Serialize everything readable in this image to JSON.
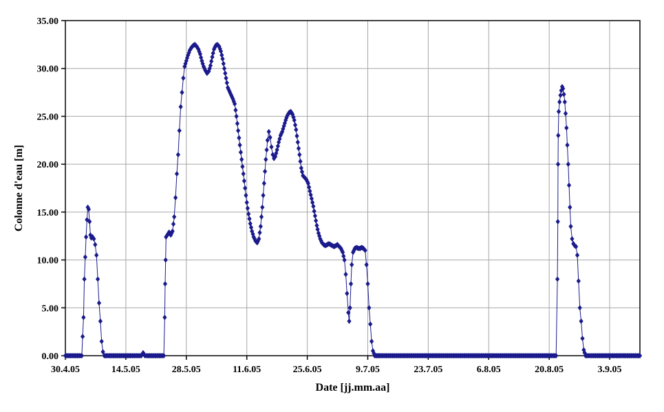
{
  "chart_data": {
    "type": "scatter",
    "title": "",
    "xlabel": "Date [jj.mm.aa]",
    "ylabel": "Colonne d'eau [m]",
    "x_unit": "days since 30.4.05",
    "xlim": [
      0,
      133
    ],
    "ylim": [
      0,
      35
    ],
    "grid": true,
    "legend": "none",
    "marker": "diamond",
    "marker_color": "#1a1a8c",
    "grid_color": "#a6a6a6",
    "axis_color": "#000000",
    "x_ticks": [
      {
        "day": 0,
        "label": "30.4.05"
      },
      {
        "day": 14,
        "label": "14.5.05"
      },
      {
        "day": 28,
        "label": "28.5.05"
      },
      {
        "day": 42,
        "label": "11.6.05"
      },
      {
        "day": 56,
        "label": "25.6.05"
      },
      {
        "day": 70,
        "label": "9.7.05"
      },
      {
        "day": 84,
        "label": "23.7.05"
      },
      {
        "day": 98,
        "label": "6.8.05"
      },
      {
        "day": 112,
        "label": "20.8.05"
      },
      {
        "day": 126,
        "label": "3.9.05"
      }
    ],
    "y_ticks": [
      {
        "value": 0,
        "label": "0.00"
      },
      {
        "value": 5,
        "label": "5.00"
      },
      {
        "value": 10,
        "label": "10.00"
      },
      {
        "value": 15,
        "label": "15.00"
      },
      {
        "value": 20,
        "label": "20.00"
      },
      {
        "value": 25,
        "label": "25.00"
      },
      {
        "value": 30,
        "label": "30.00"
      },
      {
        "value": 35,
        "label": "35.00"
      }
    ],
    "points": [
      [
        0,
        0
      ],
      [
        1,
        0
      ],
      [
        2,
        0
      ],
      [
        3,
        0
      ],
      [
        3.8,
        0
      ],
      [
        4.2,
        4.0
      ],
      [
        4.4,
        8.0
      ],
      [
        4.6,
        10.3
      ],
      [
        4.8,
        12.4
      ],
      [
        5.0,
        14.2
      ],
      [
        5.2,
        15.5
      ],
      [
        5.4,
        15.3
      ],
      [
        5.6,
        14.0
      ],
      [
        5.8,
        12.6
      ],
      [
        6.0,
        12.3
      ],
      [
        6.3,
        12.4
      ],
      [
        6.6,
        12.2
      ],
      [
        6.9,
        11.6
      ],
      [
        7.2,
        10.5
      ],
      [
        7.5,
        8.0
      ],
      [
        7.8,
        5.5
      ],
      [
        8.1,
        3.6
      ],
      [
        8.4,
        1.5
      ],
      [
        8.7,
        0.4
      ],
      [
        9,
        0
      ],
      [
        10,
        0
      ],
      [
        12,
        0
      ],
      [
        14,
        0
      ],
      [
        16,
        0
      ],
      [
        17.6,
        0
      ],
      [
        18,
        0.3
      ],
      [
        18.4,
        0
      ],
      [
        19,
        0
      ],
      [
        20,
        0
      ],
      [
        21,
        0
      ],
      [
        22,
        0
      ],
      [
        22.8,
        0
      ],
      [
        23.0,
        4.0
      ],
      [
        23.1,
        7.5
      ],
      [
        23.2,
        10.0
      ],
      [
        23.3,
        12.4
      ],
      [
        23.6,
        12.6
      ],
      [
        24.0,
        12.9
      ],
      [
        24.4,
        12.6
      ],
      [
        24.8,
        13.0
      ],
      [
        25.2,
        14.5
      ],
      [
        25.5,
        16.5
      ],
      [
        25.8,
        19.0
      ],
      [
        26.1,
        21.0
      ],
      [
        26.4,
        23.5
      ],
      [
        26.7,
        26.0
      ],
      [
        27.0,
        27.5
      ],
      [
        27.3,
        29.0
      ],
      [
        27.6,
        30.2
      ],
      [
        28.0,
        30.8
      ],
      [
        28.4,
        31.4
      ],
      [
        28.8,
        31.9
      ],
      [
        29.2,
        32.2
      ],
      [
        29.6,
        32.4
      ],
      [
        30.0,
        32.5
      ],
      [
        30.4,
        32.3
      ],
      [
        30.8,
        32.0
      ],
      [
        31.2,
        31.5
      ],
      [
        31.6,
        30.8
      ],
      [
        32.0,
        30.2
      ],
      [
        32.4,
        29.8
      ],
      [
        32.8,
        29.5
      ],
      [
        33.2,
        29.7
      ],
      [
        33.6,
        30.3
      ],
      [
        34.0,
        31.2
      ],
      [
        34.4,
        32.0
      ],
      [
        34.8,
        32.4
      ],
      [
        35.2,
        32.5
      ],
      [
        35.6,
        32.3
      ],
      [
        36.0,
        31.8
      ],
      [
        36.4,
        31.0
      ],
      [
        36.8,
        30.0
      ],
      [
        37.2,
        29.0
      ],
      [
        37.6,
        28.0
      ],
      [
        38.0,
        27.6
      ],
      [
        38.4,
        27.2
      ],
      [
        38.8,
        26.8
      ],
      [
        39.2,
        26.3
      ],
      [
        39.6,
        25.0
      ],
      [
        40.0,
        23.5
      ],
      [
        40.4,
        22.0
      ],
      [
        40.8,
        20.5
      ],
      [
        41.2,
        19.0
      ],
      [
        41.6,
        17.5
      ],
      [
        42.0,
        16.0
      ],
      [
        42.4,
        14.8
      ],
      [
        42.8,
        13.8
      ],
      [
        43.2,
        13.0
      ],
      [
        43.6,
        12.4
      ],
      [
        44.0,
        12.0
      ],
      [
        44.4,
        11.8
      ],
      [
        44.8,
        12.2
      ],
      [
        45.2,
        13.5
      ],
      [
        45.6,
        15.5
      ],
      [
        46.0,
        18.0
      ],
      [
        46.4,
        20.5
      ],
      [
        46.8,
        22.5
      ],
      [
        47.1,
        23.4
      ],
      [
        47.4,
        22.8
      ],
      [
        47.7,
        21.8
      ],
      [
        48.0,
        21.0
      ],
      [
        48.3,
        20.6
      ],
      [
        48.6,
        20.8
      ],
      [
        49.0,
        21.5
      ],
      [
        49.4,
        22.3
      ],
      [
        49.8,
        23.0
      ],
      [
        50.2,
        23.4
      ],
      [
        50.6,
        24.0
      ],
      [
        51.0,
        24.6
      ],
      [
        51.4,
        25.1
      ],
      [
        51.8,
        25.4
      ],
      [
        52.2,
        25.5
      ],
      [
        52.6,
        25.2
      ],
      [
        53.0,
        24.6
      ],
      [
        53.4,
        23.6
      ],
      [
        53.8,
        22.3
      ],
      [
        54.2,
        21.0
      ],
      [
        54.6,
        19.6
      ],
      [
        55.0,
        18.8
      ],
      [
        55.4,
        18.6
      ],
      [
        55.8,
        18.4
      ],
      [
        56.2,
        18.0
      ],
      [
        56.6,
        17.2
      ],
      [
        57.0,
        16.4
      ],
      [
        57.4,
        15.6
      ],
      [
        57.8,
        14.6
      ],
      [
        58.2,
        13.6
      ],
      [
        58.6,
        12.8
      ],
      [
        59.0,
        12.2
      ],
      [
        59.4,
        11.8
      ],
      [
        59.8,
        11.6
      ],
      [
        60.2,
        11.5
      ],
      [
        60.6,
        11.6
      ],
      [
        61.0,
        11.7
      ],
      [
        61.4,
        11.6
      ],
      [
        61.8,
        11.5
      ],
      [
        62.2,
        11.4
      ],
      [
        62.6,
        11.5
      ],
      [
        63.0,
        11.6
      ],
      [
        63.4,
        11.4
      ],
      [
        63.8,
        11.2
      ],
      [
        64.2,
        10.8
      ],
      [
        64.6,
        10.0
      ],
      [
        64.9,
        8.5
      ],
      [
        65.2,
        6.5
      ],
      [
        65.5,
        4.5
      ],
      [
        65.7,
        3.6
      ],
      [
        65.9,
        5.0
      ],
      [
        66.1,
        7.5
      ],
      [
        66.3,
        9.5
      ],
      [
        66.6,
        10.8
      ],
      [
        67.0,
        11.2
      ],
      [
        67.4,
        11.3
      ],
      [
        67.8,
        11.2
      ],
      [
        68.2,
        11.2
      ],
      [
        68.6,
        11.3
      ],
      [
        69.0,
        11.2
      ],
      [
        69.4,
        11.0
      ],
      [
        69.7,
        9.5
      ],
      [
        70.0,
        7.5
      ],
      [
        70.3,
        5.0
      ],
      [
        70.6,
        3.3
      ],
      [
        70.9,
        1.5
      ],
      [
        71.2,
        0.5
      ],
      [
        71.6,
        0
      ],
      [
        73,
        0
      ],
      [
        76,
        0
      ],
      [
        80,
        0
      ],
      [
        84,
        0
      ],
      [
        88,
        0
      ],
      [
        92,
        0
      ],
      [
        96,
        0
      ],
      [
        100,
        0
      ],
      [
        104,
        0
      ],
      [
        108,
        0
      ],
      [
        112,
        0
      ],
      [
        113.6,
        0
      ],
      [
        113.9,
        8.0
      ],
      [
        114.0,
        14.0
      ],
      [
        114.05,
        20.0
      ],
      [
        114.1,
        23.0
      ],
      [
        114.2,
        25.5
      ],
      [
        114.4,
        26.5
      ],
      [
        114.6,
        27.2
      ],
      [
        114.8,
        27.7
      ],
      [
        115.0,
        28.1
      ],
      [
        115.2,
        27.9
      ],
      [
        115.4,
        27.3
      ],
      [
        115.6,
        26.5
      ],
      [
        115.8,
        25.3
      ],
      [
        116.0,
        23.8
      ],
      [
        116.2,
        22.0
      ],
      [
        116.4,
        20.0
      ],
      [
        116.6,
        17.8
      ],
      [
        116.8,
        15.5
      ],
      [
        117.0,
        13.5
      ],
      [
        117.3,
        12.2
      ],
      [
        117.6,
        11.7
      ],
      [
        117.9,
        11.5
      ],
      [
        118.2,
        11.4
      ],
      [
        118.5,
        10.5
      ],
      [
        118.8,
        7.8
      ],
      [
        119.1,
        5.0
      ],
      [
        119.4,
        3.6
      ],
      [
        119.7,
        1.8
      ],
      [
        120.0,
        0.6
      ],
      [
        120.4,
        0
      ],
      [
        122,
        0
      ],
      [
        125,
        0
      ],
      [
        128,
        0
      ],
      [
        131,
        0
      ],
      [
        133,
        0
      ]
    ]
  }
}
